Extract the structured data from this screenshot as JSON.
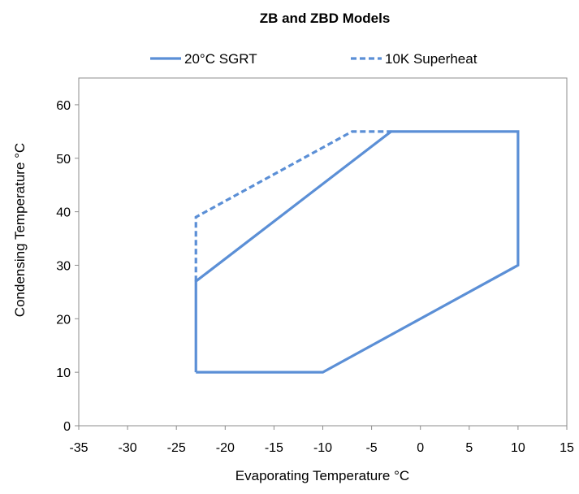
{
  "chart_data": {
    "type": "line",
    "title": "ZB and ZBD Models",
    "xlabel": "Evaporating Temperature °C",
    "ylabel": "Condensing Temperature °C",
    "xlim": [
      -35,
      15
    ],
    "ylim": [
      0,
      65
    ],
    "x_ticks": [
      -35,
      -30,
      -25,
      -20,
      -15,
      -10,
      -5,
      0,
      5,
      10,
      15
    ],
    "y_ticks": [
      0,
      10,
      20,
      30,
      40,
      50,
      60
    ],
    "grid": false,
    "legend_position": "top",
    "series": [
      {
        "name": "20°C SGRT",
        "style": "solid",
        "color": "#5B8FD6",
        "points": [
          {
            "x": -23,
            "y": 10
          },
          {
            "x": -10,
            "y": 10
          },
          {
            "x": 10,
            "y": 30
          },
          {
            "x": 10,
            "y": 55
          },
          {
            "x": -3,
            "y": 55
          },
          {
            "x": -23,
            "y": 27
          },
          {
            "x": -23,
            "y": 10
          }
        ]
      },
      {
        "name": "10K Superheat",
        "style": "dashed",
        "color": "#5B8FD6",
        "points": [
          {
            "x": -23,
            "y": 27
          },
          {
            "x": -23,
            "y": 39
          },
          {
            "x": -7,
            "y": 55
          },
          {
            "x": -3,
            "y": 55
          }
        ]
      }
    ]
  }
}
